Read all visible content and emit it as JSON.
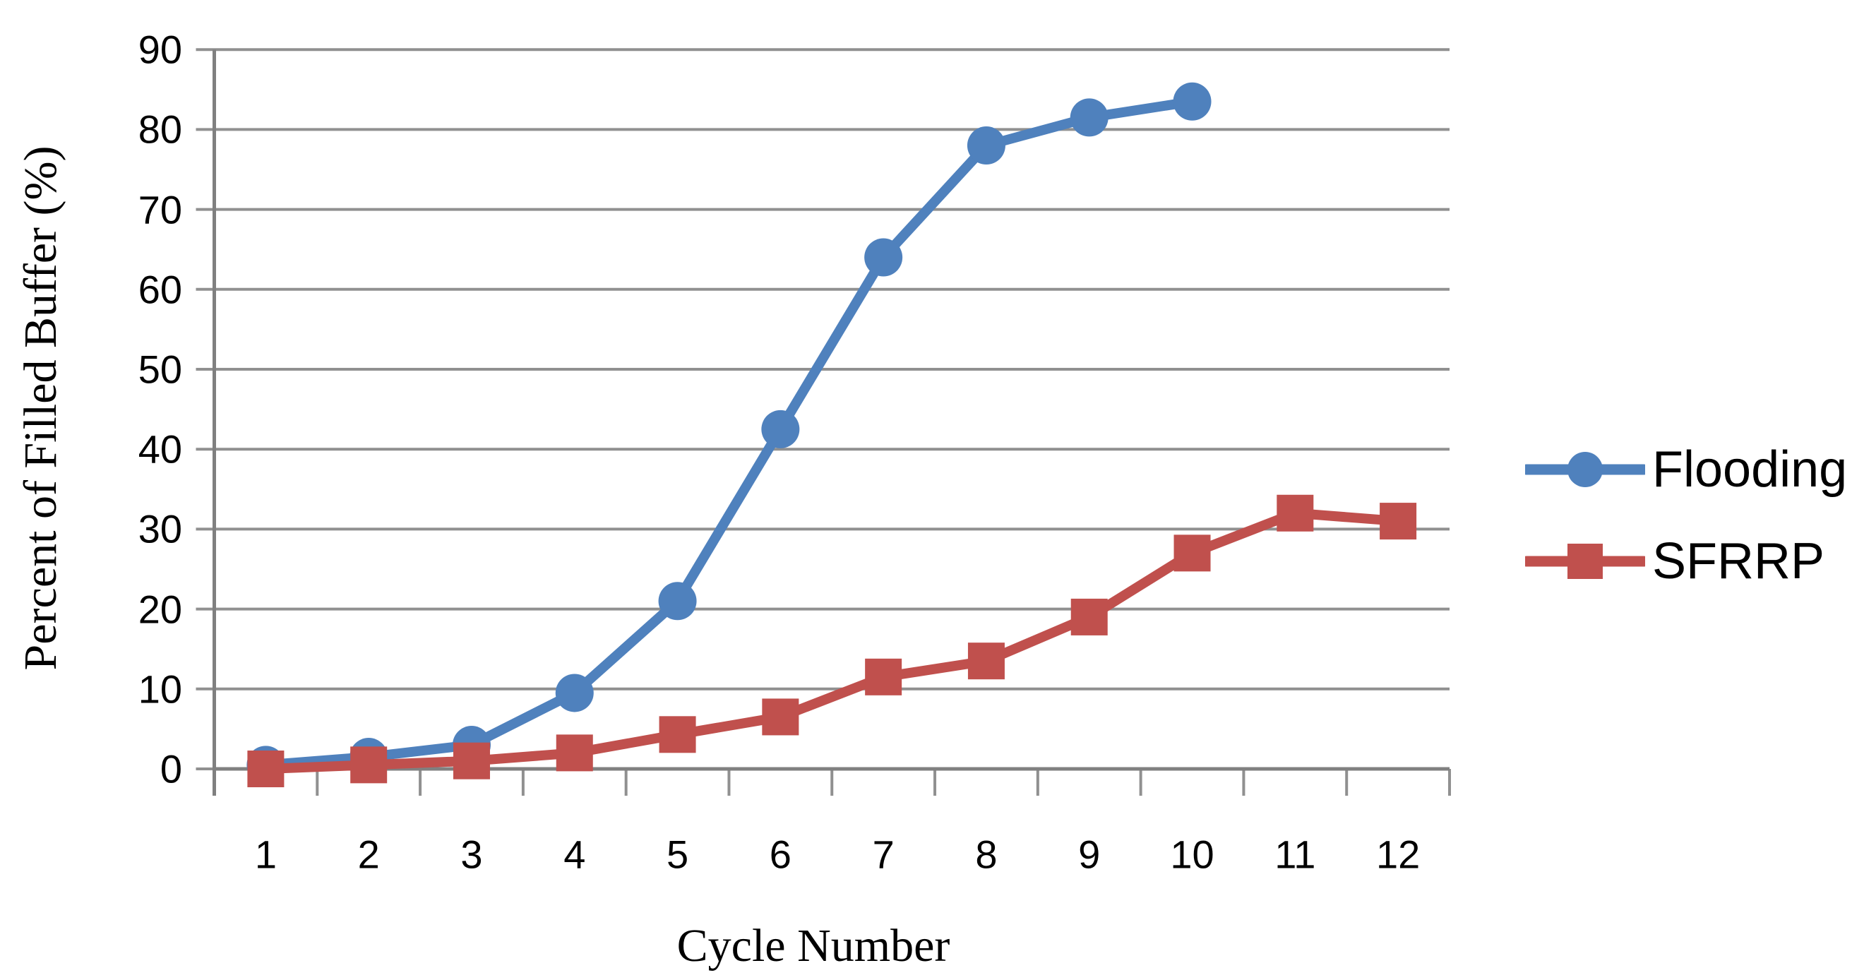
{
  "chart_data": {
    "type": "line",
    "title": "",
    "xlabel": "Cycle Number",
    "ylabel": "Percent of Filled Buffer (%)",
    "categories": [
      "1",
      "2",
      "3",
      "4",
      "5",
      "6",
      "7",
      "8",
      "9",
      "10",
      "11",
      "12"
    ],
    "y_ticks": [
      0,
      10,
      20,
      30,
      40,
      50,
      60,
      70,
      80,
      90
    ],
    "ylim": [
      0,
      90
    ],
    "grid": "horizontal",
    "legend_position": "right",
    "series": [
      {
        "name": "Flooding",
        "color": "#4F81BD",
        "marker": "circle",
        "values": [
          0.5,
          1.5,
          3,
          9.5,
          21,
          42.5,
          64,
          78,
          81.5,
          83.5
        ]
      },
      {
        "name": "SFRRP",
        "color": "#C0504D",
        "marker": "square",
        "values": [
          0,
          0.5,
          1,
          2,
          4.3,
          6.5,
          11.5,
          13.5,
          19,
          27,
          32,
          31
        ]
      }
    ],
    "colors": {
      "gridline": "#909090",
      "axis": "#808080",
      "text": "#000000",
      "background": "#FFFFFF"
    }
  }
}
